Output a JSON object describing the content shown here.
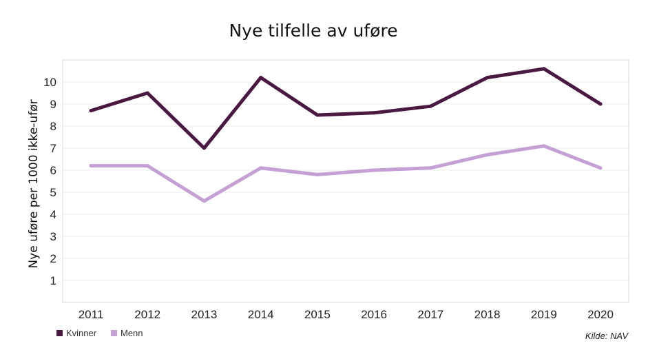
{
  "chart_data": {
    "type": "line",
    "title": "Nye tilfelle av uføre",
    "ylabel": "Nye uføre per 1000 ikke-ufør",
    "xlabel": "",
    "categories": [
      "2011",
      "2012",
      "2013",
      "2014",
      "2015",
      "2016",
      "2017",
      "2018",
      "2019",
      "2020"
    ],
    "ylim": [
      0,
      11
    ],
    "yticks": [
      1,
      2,
      3,
      4,
      5,
      6,
      7,
      8,
      9,
      10
    ],
    "grid": true,
    "legend_position": "bottom-left",
    "series": [
      {
        "name": "Kvinner",
        "color": "#4a1942",
        "values": [
          8.7,
          9.5,
          7.0,
          10.2,
          8.5,
          8.6,
          8.9,
          10.2,
          10.6,
          9.0
        ]
      },
      {
        "name": "Menn",
        "color": "#c4a0d4",
        "values": [
          6.2,
          6.2,
          4.6,
          6.1,
          5.8,
          6.0,
          6.1,
          6.7,
          7.1,
          6.1
        ]
      }
    ],
    "source": "Kilde: NAV"
  }
}
